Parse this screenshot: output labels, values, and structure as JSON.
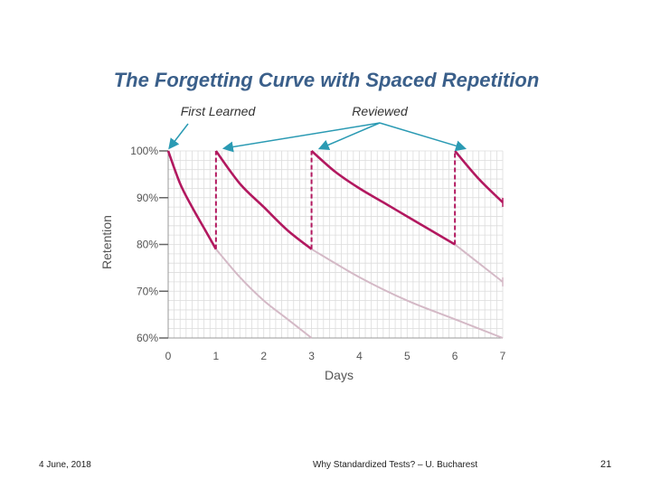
{
  "slide": {
    "footer_date": "4 June, 2018",
    "footer_center": "Why Standardized Tests? – U. Bucharest",
    "page_number": "21"
  },
  "chart_data": {
    "type": "line",
    "title": "The Forgetting Curve with Spaced Repetition",
    "xlabel": "Days",
    "ylabel": "Retention",
    "xlim": [
      0,
      7
    ],
    "ylim": [
      60,
      100
    ],
    "x_ticks": [
      "0",
      "1",
      "2",
      "3",
      "4",
      "5",
      "6",
      "7"
    ],
    "y_ticks": [
      "60%",
      "70%",
      "80%",
      "90%",
      "100%"
    ],
    "annotations": {
      "first_learned": "First Learned",
      "reviewed": "Reviewed"
    },
    "review_days": [
      1,
      3,
      6
    ],
    "series": [
      {
        "name": "retention-with-reviews",
        "segments": [
          {
            "x": [
              0,
              0.25,
              0.5,
              0.75,
              1
            ],
            "y": [
              100,
              93,
              88,
              83.5,
              79
            ]
          },
          {
            "x": [
              1,
              1.5,
              2,
              2.5,
              3
            ],
            "y": [
              100,
              93,
              88,
              83,
              79
            ]
          },
          {
            "x": [
              3,
              3.5,
              4,
              4.5,
              5,
              5.5,
              6
            ],
            "y": [
              100,
              95.5,
              92,
              89,
              86,
              83,
              80
            ]
          },
          {
            "x": [
              6,
              6.5,
              7
            ],
            "y": [
              100,
              94,
              89
            ]
          }
        ]
      },
      {
        "name": "forgetting-without-review",
        "segments": [
          {
            "x": [
              1,
              1.5,
              2,
              2.5,
              3
            ],
            "y": [
              79,
              73,
              68,
              64,
              60
            ]
          },
          {
            "x": [
              3,
              4,
              5,
              6,
              7
            ],
            "y": [
              79,
              73,
              68,
              64,
              60
            ]
          },
          {
            "x": [
              6,
              6.5,
              7
            ],
            "y": [
              80,
              76,
              72
            ]
          }
        ]
      }
    ],
    "colors": {
      "title": "#3a5f8a",
      "curve": "#b2185f",
      "faded": "#d4b9c6",
      "arrow": "#2a9ab3",
      "grid": "#dcdcdc",
      "axis_text": "#555555"
    }
  }
}
